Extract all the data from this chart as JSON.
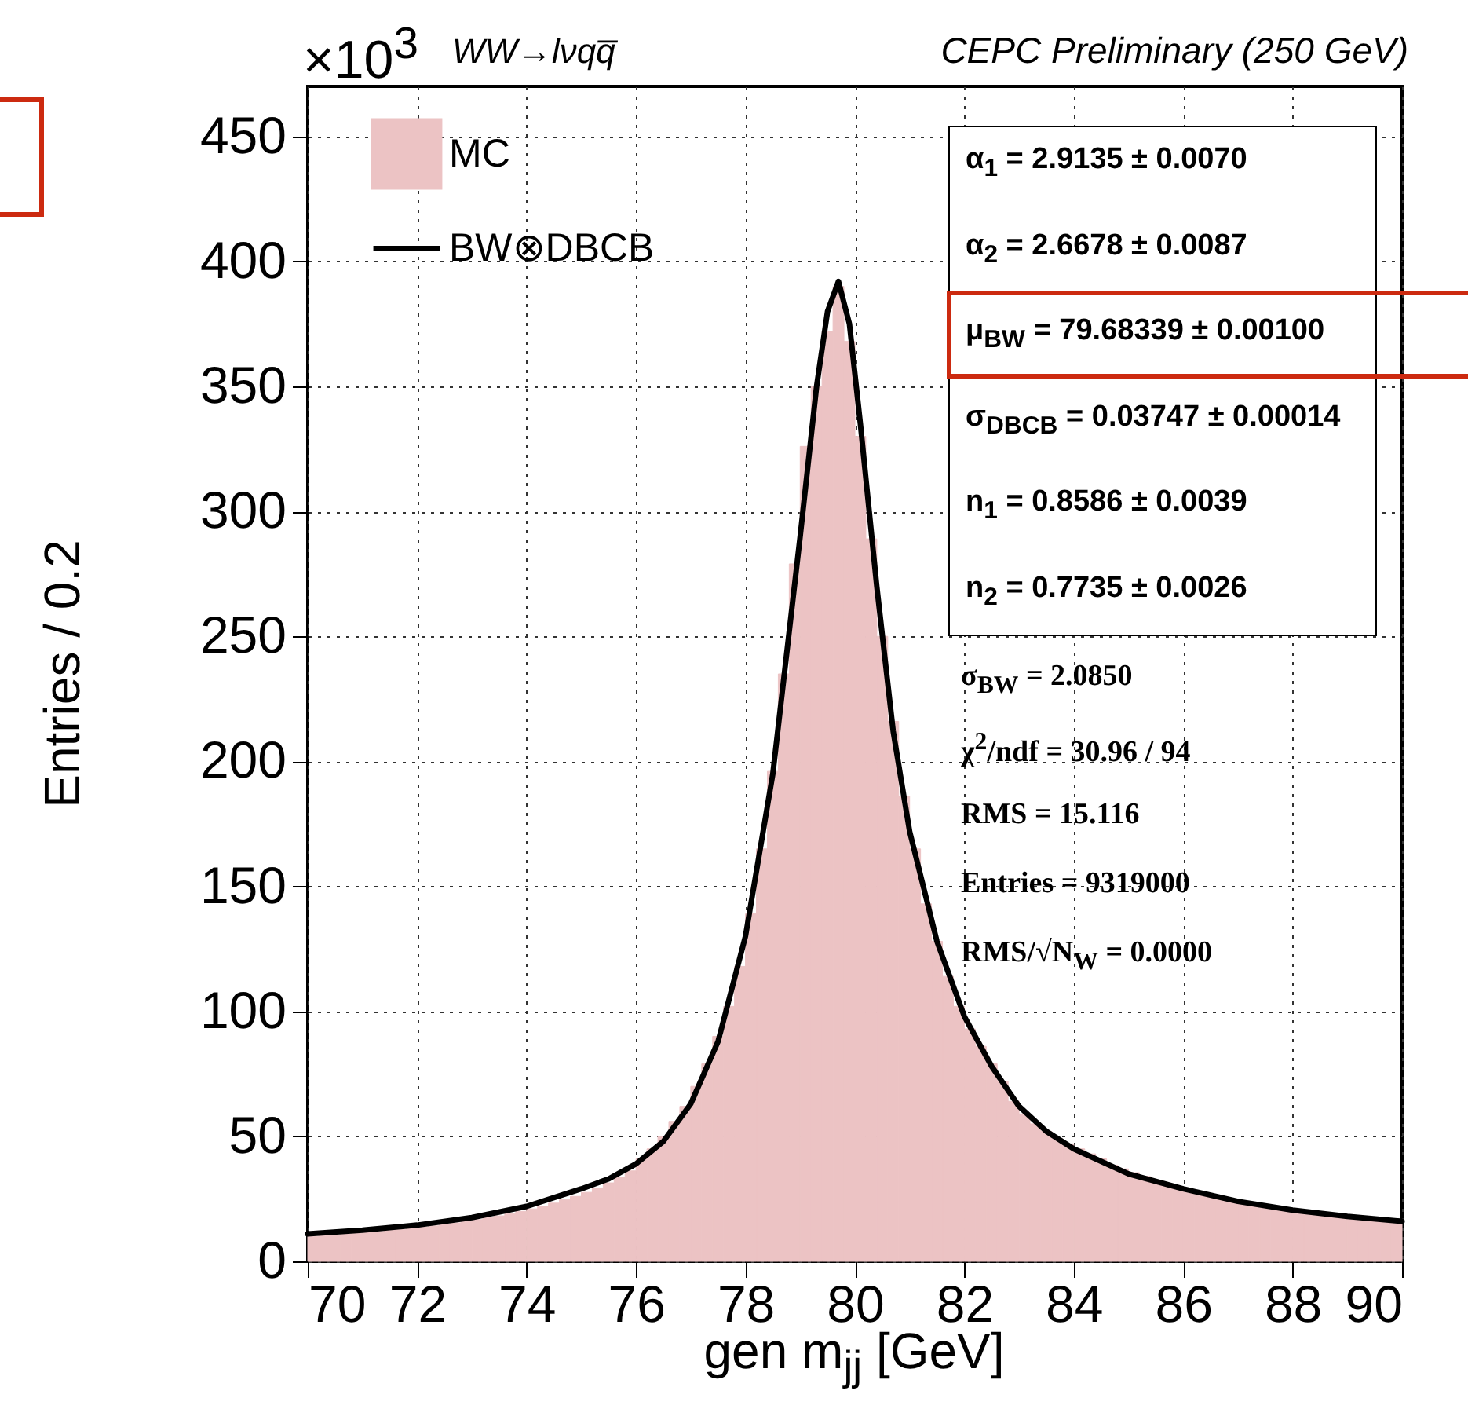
{
  "chart_data": {
    "type": "histogram",
    "title": "WW→lνqq̅",
    "subtitle": "CEPC Preliminary (250 GeV)",
    "xlabel": "gen m$_{jj}$ [GeV]",
    "ylabel": "Entries / 0.2",
    "annotations": [
      "×10$^{3}$",
      "α$_{1}$ =  2.9135 ± 0.0070",
      "α$_{2}$ =  2.6678 ± 0.0087",
      "μ$_{BW}$ =  79.68339 ± 0.00100",
      "σ$_{DBCB}$ =  0.03747 ± 0.00014",
      "n$_{1}$ =  0.8586 ± 0.0039",
      "n$_{2}$ =  0.7735 ± 0.0026",
      "σ$_{BW}$ = 2.0850",
      "χ$^{2}$/ndf = 30.96 / 94",
      "RMS = 15.116",
      "Entries = 9319000",
      "RMS/√N$_{W}$ = 0.0000"
    ],
    "bins": [
      70,
      70.2,
      70.4,
      70.6,
      70.8,
      71,
      71.2,
      71.4,
      71.6,
      71.8,
      72,
      72.2,
      72.4,
      72.6,
      72.8,
      73,
      73.2,
      73.4,
      73.6,
      73.8,
      74,
      74.2,
      74.4,
      74.6,
      74.8,
      75,
      75.2,
      75.4,
      75.6,
      75.8,
      76,
      76.2,
      76.4,
      76.6,
      76.8,
      77,
      77.2,
      77.4,
      77.6,
      77.8,
      78,
      78.2,
      78.4,
      78.6,
      78.8,
      79,
      79.2,
      79.4,
      79.6,
      79.8,
      80,
      80.2,
      80.4,
      80.6,
      80.8,
      81,
      81.2,
      81.4,
      81.6,
      81.8,
      82,
      82.2,
      82.4,
      82.6,
      82.8,
      83,
      83.2,
      83.4,
      83.6,
      83.8,
      84,
      84.2,
      84.4,
      84.6,
      84.8,
      85,
      85.2,
      85.4,
      85.6,
      85.8,
      86,
      86.2,
      86.4,
      86.6,
      86.8,
      87,
      87.2,
      87.4,
      87.6,
      87.8,
      88,
      88.2,
      88.4,
      88.6,
      88.8,
      89,
      89.2,
      89.4,
      89.6,
      89.8,
      90
    ],
    "series": [
      {
        "name": "MC",
        "color": "#ecc3c4",
        "values": [
          10,
          10.3,
          10.6,
          11,
          11.3,
          11.7,
          12,
          12.4,
          12.8,
          13.3,
          13.7,
          14.2,
          14.8,
          15.4,
          16,
          16.7,
          17.4,
          18.2,
          19.1,
          20,
          21,
          22.1,
          23.3,
          24.6,
          26,
          27.6,
          29.4,
          31.4,
          33.7,
          36.2,
          41,
          45,
          50,
          56,
          62,
          70,
          79,
          90,
          102,
          118,
          139,
          165,
          196,
          235,
          279,
          326,
          350,
          372,
          390,
          368,
          330,
          289,
          250,
          216,
          186,
          165,
          143,
          128,
          114,
          102,
          93,
          86,
          79,
          72,
          64,
          59,
          55,
          52,
          49,
          47,
          45,
          43,
          41,
          38.5,
          37,
          35.5,
          34,
          32.5,
          31,
          29.5,
          28.5,
          27.5,
          26.5,
          25.5,
          24.6,
          23.8,
          23,
          22.4,
          21.8,
          21.2,
          20.6,
          20.1,
          19.6,
          19.1,
          18.6,
          18.1,
          17.6,
          17.1,
          16.6,
          16.1
        ]
      },
      {
        "name": "BW⊗DBCB",
        "type": "line",
        "color": "#000000",
        "x": [
          70,
          71,
          72,
          73,
          74,
          75,
          75.5,
          76,
          76.5,
          77,
          77.5,
          78,
          78.5,
          79,
          79.3,
          79.5,
          79.7,
          79.9,
          80.1,
          80.4,
          80.7,
          81,
          81.5,
          82,
          82.5,
          83,
          83.5,
          84,
          85,
          86,
          87,
          88,
          89,
          90
        ],
        "values": [
          11,
          12.5,
          14.5,
          17.5,
          22,
          29,
          33,
          39,
          48,
          63,
          88,
          130,
          195,
          290,
          350,
          380,
          392,
          375,
          335,
          270,
          212,
          172,
          128,
          98,
          78,
          62,
          52,
          45,
          35,
          29,
          24,
          20.5,
          18,
          16
        ]
      }
    ],
    "xlim": [
      70,
      90
    ],
    "ylim": [
      0,
      470
    ],
    "xticks": [
      70,
      72,
      74,
      76,
      78,
      80,
      82,
      84,
      86,
      88,
      90
    ],
    "yticks": [
      0,
      50,
      100,
      150,
      200,
      250,
      300,
      350,
      400,
      450
    ],
    "grid": true,
    "legend": "top left"
  }
}
